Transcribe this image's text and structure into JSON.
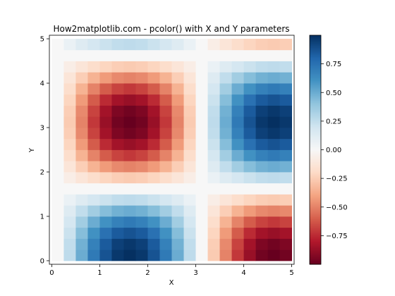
{
  "chart_data": {
    "type": "heatmap",
    "title": "How2matplotlib.com - pcolor() with X and Y parameters",
    "xlabel": "X",
    "ylabel": "Y",
    "xlim": [
      -0.05,
      5.05
    ],
    "ylim": [
      -0.08,
      5.08
    ],
    "xticks": [
      0,
      1,
      2,
      3,
      4,
      5
    ],
    "xtick_labels": [
      "0",
      "1",
      "2",
      "3",
      "4",
      "5"
    ],
    "yticks": [
      0,
      1,
      2,
      3,
      4,
      5
    ],
    "yticklabels": [
      "0",
      "1",
      "2",
      "3",
      "4",
      "5"
    ],
    "colormap": "RdBu",
    "colorbar": {
      "vmin": -1.0,
      "vmax": 1.0,
      "ticks": [
        0.75,
        0.5,
        0.25,
        0.0,
        -0.25,
        -0.5,
        -0.75
      ],
      "tick_labels": [
        "0.75",
        "0.50",
        "0.25",
        "0.00",
        "−0.25",
        "−0.50",
        "−0.75"
      ]
    },
    "x_edges": [
      0.0,
      0.25,
      0.5,
      0.75,
      1.0,
      1.25,
      1.5,
      1.75,
      2.0,
      2.25,
      2.5,
      2.75,
      3.0,
      3.25,
      3.5,
      3.75,
      4.0,
      4.25,
      4.5,
      4.75,
      5.0
    ],
    "y_edges": [
      0.0,
      0.25,
      0.5,
      0.75,
      1.0,
      1.25,
      1.5,
      1.75,
      2.0,
      2.25,
      2.5,
      2.75,
      3.0,
      3.25,
      3.5,
      3.75,
      4.0,
      4.25,
      4.5,
      4.75,
      5.0
    ],
    "z": [
      [
        0.0,
        0.26,
        0.5,
        0.71,
        0.87,
        0.97,
        1.0,
        0.97,
        0.87,
        0.71,
        0.5,
        0.26,
        0.0,
        -0.26,
        -0.5,
        -0.71,
        -0.87,
        -0.97,
        -1.0,
        -0.97
      ],
      [
        0.0,
        0.25,
        0.48,
        0.68,
        0.84,
        0.94,
        0.97,
        0.94,
        0.84,
        0.68,
        0.48,
        0.25,
        0.0,
        -0.25,
        -0.48,
        -0.68,
        -0.84,
        -0.94,
        -0.97,
        -0.94
      ],
      [
        0.0,
        0.22,
        0.43,
        0.61,
        0.75,
        0.84,
        0.87,
        0.84,
        0.75,
        0.61,
        0.43,
        0.22,
        0.0,
        -0.22,
        -0.43,
        -0.61,
        -0.75,
        -0.84,
        -0.87,
        -0.84
      ],
      [
        0.0,
        0.18,
        0.35,
        0.5,
        0.61,
        0.68,
        0.71,
        0.68,
        0.61,
        0.5,
        0.35,
        0.18,
        0.0,
        -0.18,
        -0.35,
        -0.5,
        -0.61,
        -0.68,
        -0.71,
        -0.68
      ],
      [
        0.0,
        0.13,
        0.25,
        0.35,
        0.43,
        0.48,
        0.5,
        0.48,
        0.43,
        0.35,
        0.25,
        0.13,
        0.0,
        -0.13,
        -0.25,
        -0.35,
        -0.43,
        -0.48,
        -0.5,
        -0.48
      ],
      [
        0.0,
        0.07,
        0.13,
        0.18,
        0.22,
        0.25,
        0.26,
        0.25,
        0.22,
        0.18,
        0.13,
        0.07,
        0.0,
        -0.07,
        -0.13,
        -0.18,
        -0.22,
        -0.25,
        -0.26,
        -0.25
      ],
      [
        0.0,
        0.0,
        0.0,
        0.0,
        0.0,
        0.0,
        0.0,
        0.0,
        0.0,
        0.0,
        0.0,
        0.0,
        0.0,
        0.0,
        0.0,
        0.0,
        0.0,
        0.0,
        0.0,
        0.0
      ],
      [
        0.0,
        -0.07,
        -0.13,
        -0.18,
        -0.22,
        -0.25,
        -0.26,
        -0.25,
        -0.22,
        -0.18,
        -0.13,
        -0.07,
        0.0,
        0.07,
        0.13,
        0.18,
        0.22,
        0.25,
        0.26,
        0.25
      ],
      [
        0.0,
        -0.13,
        -0.25,
        -0.35,
        -0.43,
        -0.48,
        -0.5,
        -0.48,
        -0.43,
        -0.35,
        -0.25,
        -0.13,
        0.0,
        0.13,
        0.25,
        0.35,
        0.43,
        0.48,
        0.5,
        0.48
      ],
      [
        0.0,
        -0.18,
        -0.35,
        -0.5,
        -0.61,
        -0.68,
        -0.71,
        -0.68,
        -0.61,
        -0.5,
        -0.35,
        -0.18,
        0.0,
        0.18,
        0.35,
        0.5,
        0.61,
        0.68,
        0.71,
        0.68
      ],
      [
        0.0,
        -0.22,
        -0.43,
        -0.61,
        -0.75,
        -0.84,
        -0.87,
        -0.84,
        -0.75,
        -0.61,
        -0.43,
        -0.22,
        0.0,
        0.22,
        0.43,
        0.61,
        0.75,
        0.84,
        0.87,
        0.84
      ],
      [
        0.0,
        -0.25,
        -0.48,
        -0.68,
        -0.84,
        -0.94,
        -0.97,
        -0.94,
        -0.84,
        -0.68,
        -0.48,
        -0.25,
        0.0,
        0.25,
        0.48,
        0.68,
        0.84,
        0.94,
        0.97,
        0.94
      ],
      [
        0.0,
        -0.26,
        -0.5,
        -0.71,
        -0.87,
        -0.97,
        -1.0,
        -0.97,
        -0.87,
        -0.71,
        -0.5,
        -0.26,
        0.0,
        0.26,
        0.5,
        0.71,
        0.87,
        0.97,
        1.0,
        0.97
      ],
      [
        0.0,
        -0.25,
        -0.48,
        -0.68,
        -0.84,
        -0.94,
        -0.97,
        -0.94,
        -0.84,
        -0.68,
        -0.48,
        -0.25,
        0.0,
        0.25,
        0.48,
        0.68,
        0.84,
        0.94,
        0.97,
        0.94
      ],
      [
        0.0,
        -0.22,
        -0.43,
        -0.61,
        -0.75,
        -0.84,
        -0.87,
        -0.84,
        -0.75,
        -0.61,
        -0.43,
        -0.22,
        0.0,
        0.22,
        0.43,
        0.61,
        0.75,
        0.84,
        0.87,
        0.84
      ],
      [
        0.0,
        -0.18,
        -0.35,
        -0.5,
        -0.61,
        -0.68,
        -0.71,
        -0.68,
        -0.61,
        -0.5,
        -0.35,
        -0.18,
        0.0,
        0.18,
        0.35,
        0.5,
        0.61,
        0.68,
        0.71,
        0.68
      ],
      [
        0.0,
        -0.13,
        -0.25,
        -0.35,
        -0.43,
        -0.48,
        -0.5,
        -0.48,
        -0.43,
        -0.35,
        -0.25,
        -0.13,
        0.0,
        0.13,
        0.25,
        0.35,
        0.43,
        0.48,
        0.5,
        0.48
      ],
      [
        0.0,
        -0.07,
        -0.13,
        -0.18,
        -0.22,
        -0.25,
        -0.26,
        -0.25,
        -0.22,
        -0.18,
        -0.13,
        -0.07,
        0.0,
        0.07,
        0.13,
        0.18,
        0.22,
        0.25,
        0.26,
        0.25
      ],
      [
        0.0,
        0.0,
        0.0,
        0.0,
        0.0,
        0.0,
        0.0,
        0.0,
        0.0,
        0.0,
        0.0,
        0.0,
        0.0,
        0.0,
        0.0,
        0.0,
        0.0,
        0.0,
        0.0,
        0.0
      ],
      [
        0.0,
        0.07,
        0.13,
        0.18,
        0.22,
        0.25,
        0.26,
        0.25,
        0.22,
        0.18,
        0.13,
        0.07,
        0.0,
        -0.07,
        -0.13,
        -0.18,
        -0.22,
        -0.25,
        -0.26,
        -0.25
      ]
    ]
  }
}
